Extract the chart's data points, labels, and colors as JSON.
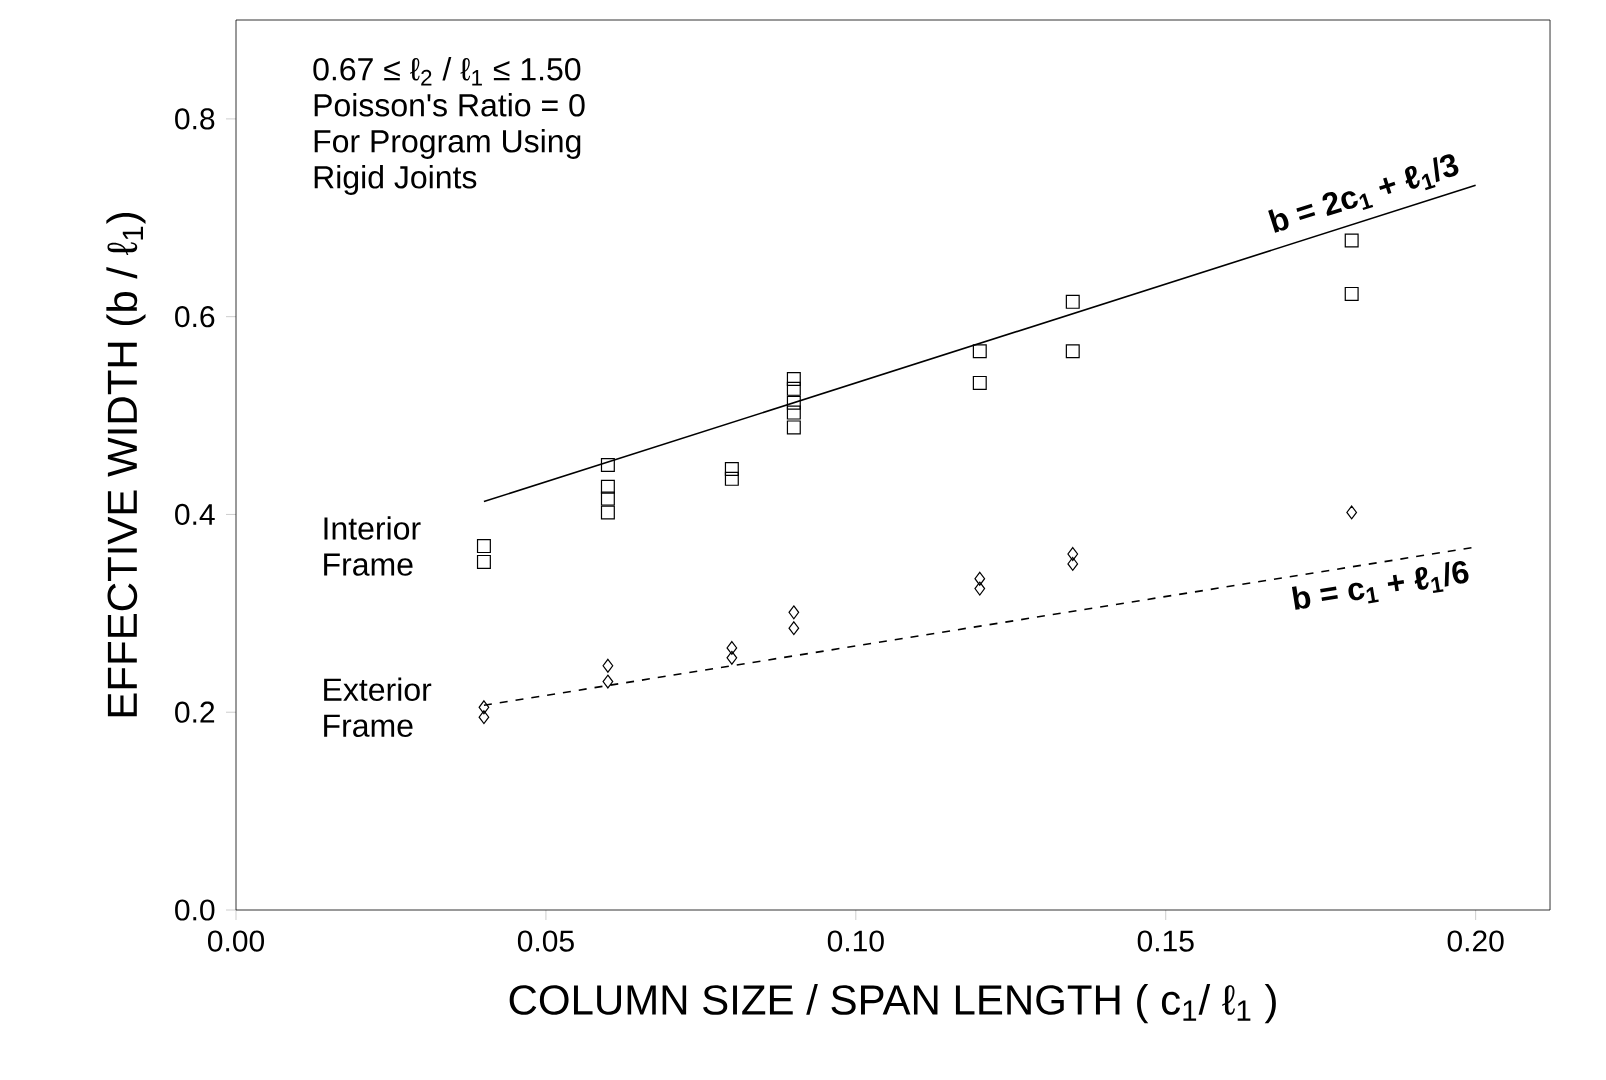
{
  "chart_data": {
    "type": "scatter",
    "xlabel": "COLUMN SIZE / SPAN LENGTH ( c$_{1}$/ ℓ$_{1}$ )",
    "ylabel": "EFFECTIVE WIDTH (b / ℓ$_{1}$)",
    "xlim": [
      0,
      0.212
    ],
    "ylim": [
      0,
      0.9
    ],
    "xticks": [
      {
        "value": 0,
        "label": "0.00"
      },
      {
        "value": 0.05,
        "label": "0.05"
      },
      {
        "value": 0.1,
        "label": "0.10"
      },
      {
        "value": 0.15,
        "label": "0.15"
      },
      {
        "value": 0.2,
        "label": "0.20"
      }
    ],
    "yticks": [
      {
        "value": 0,
        "label": "0.0"
      },
      {
        "value": 0.2,
        "label": "0.2"
      },
      {
        "value": 0.4,
        "label": "0.4"
      },
      {
        "value": 0.6,
        "label": "0.6"
      },
      {
        "value": 0.8,
        "label": "0.8"
      }
    ],
    "grid": false,
    "legend": false,
    "series": [
      {
        "name": "Interior Frame",
        "marker": "square",
        "color": "#000000",
        "x": [
          0.04,
          0.04,
          0.06,
          0.06,
          0.06,
          0.06,
          0.08,
          0.08,
          0.09,
          0.09,
          0.09,
          0.09,
          0.09,
          0.12,
          0.12,
          0.135,
          0.135,
          0.18,
          0.18
        ],
        "values": [
          0.368,
          0.352,
          0.45,
          0.428,
          0.416,
          0.402,
          0.446,
          0.436,
          0.537,
          0.527,
          0.513,
          0.503,
          0.488,
          0.565,
          0.533,
          0.615,
          0.565,
          0.677,
          0.623
        ]
      },
      {
        "name": "Exterior Frame",
        "marker": "diamond",
        "color": "#000000",
        "x": [
          0.04,
          0.04,
          0.06,
          0.06,
          0.08,
          0.08,
          0.09,
          0.09,
          0.12,
          0.12,
          0.135,
          0.135,
          0.18
        ],
        "values": [
          0.205,
          0.195,
          0.247,
          0.231,
          0.265,
          0.255,
          0.301,
          0.285,
          0.335,
          0.325,
          0.36,
          0.35,
          0.402
        ]
      },
      {
        "name": "b = 2c$_{1}$ + ℓ$_{1}$/3",
        "type": "line",
        "line_style": "solid",
        "color": "#000000",
        "x": [
          0.04,
          0.2
        ],
        "values": [
          0.413,
          0.733
        ]
      },
      {
        "name": "b = c$_{1}$ + ℓ$_{1}$/6",
        "type": "line",
        "line_style": "dashed",
        "color": "#000000",
        "x": [
          0.04,
          0.2
        ],
        "values": [
          0.207,
          0.367
        ]
      }
    ],
    "annotations": [
      "0.67 ≤ ℓ$_{2}$ / ℓ$_{1}$ ≤ 1.50",
      "Poisson's Ratio = 0",
      "For Program Using",
      "Rigid Joints"
    ]
  }
}
